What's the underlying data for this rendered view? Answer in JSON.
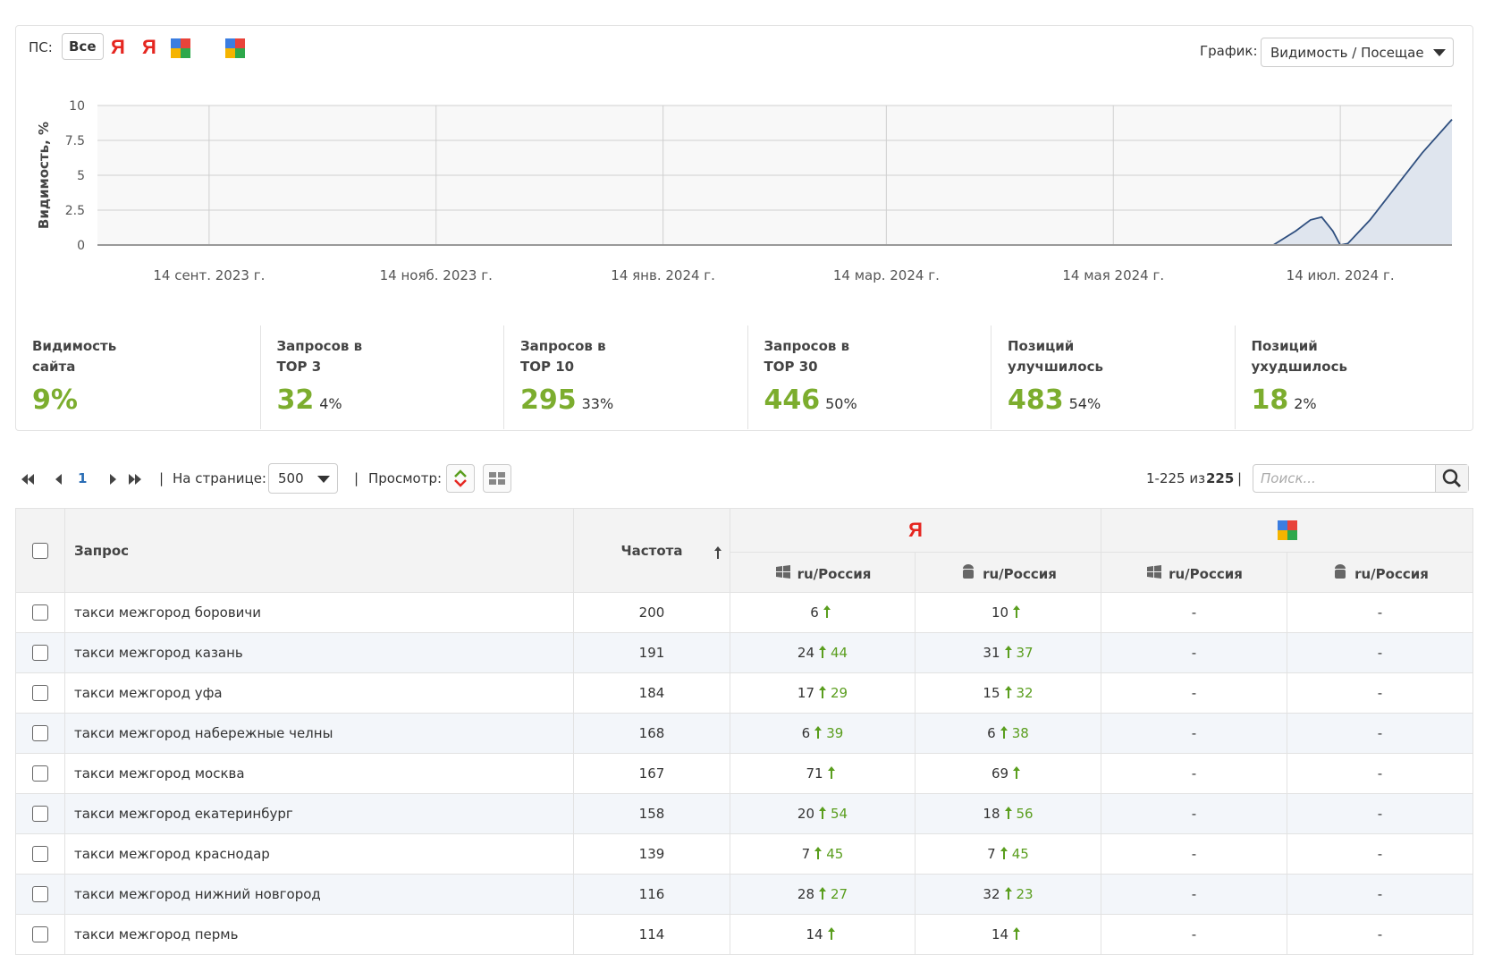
{
  "toolbar": {
    "engines_label": "ПС:",
    "all_button": "Все",
    "yandex_icons": [
      "Я",
      "Я"
    ],
    "graph_label": "График:",
    "graph_select": "Видимость / Посещаемость"
  },
  "chart_data": {
    "type": "area",
    "y_label": "Видимость, %",
    "color": "#2f4f7f",
    "fill": "#dfe5ee",
    "grid": true,
    "x": [
      "2023-08-15",
      "2024-06-26",
      "2024-07-02",
      "2024-07-06",
      "2024-07-09",
      "2024-07-12",
      "2024-07-14",
      "2024-07-16",
      "2024-07-22",
      "2024-07-29",
      "2024-08-05",
      "2024-08-13"
    ],
    "values": [
      0,
      0,
      1,
      1.8,
      2,
      1,
      0,
      0.1,
      1.8,
      4.2,
      6.6,
      9
    ],
    "xlim": [
      "2023-08-15",
      "2024-08-13"
    ],
    "xticks": [
      {
        "value": "2023-09-14",
        "label": "14 сент. 2023 г."
      },
      {
        "value": "2023-11-14",
        "label": "14 нояб. 2023 г."
      },
      {
        "value": "2024-01-14",
        "label": "14 янв. 2024 г."
      },
      {
        "value": "2024-03-14",
        "label": "14 мар. 2024 г."
      },
      {
        "value": "2024-05-14",
        "label": "14 мая 2024 г."
      },
      {
        "value": "2024-07-14",
        "label": "14 июл. 2024 г."
      }
    ],
    "ylim": [
      0,
      10
    ],
    "yticks": [
      0,
      2.5,
      5,
      7.5,
      10
    ]
  },
  "stats": [
    {
      "label": "Видимость сайта",
      "value": "9%"
    },
    {
      "label": "Запросов в TOP 3",
      "value": "32",
      "percent": "4%"
    },
    {
      "label": "Запросов в TOP 10",
      "value": "295",
      "percent": "33%"
    },
    {
      "label": "Запросов в TOP 30",
      "value": "446",
      "percent": "50%"
    },
    {
      "label": "Позиций улучшилось",
      "value": "483",
      "percent": "54%"
    },
    {
      "label": "Позиций ухудшилось",
      "value": "18",
      "percent": "2%"
    }
  ],
  "pagination": {
    "page": "1",
    "per_page_label": "На странице:",
    "per_page": "500",
    "view_label": "Просмотр:",
    "range": "1-225 из",
    "total": "225",
    "separator": "|",
    "search_placeholder": "Поиск..."
  },
  "table": {
    "header": {
      "query": "Запрос",
      "frequency": "Частота",
      "yandex": "Я",
      "regions": [
        "ru/Россия",
        "ru/Россия",
        "ru/Россия",
        "ru/Россия"
      ]
    },
    "rows": [
      {
        "query": "такси межгород боровичи",
        "frequency": "200",
        "yandex_desktop": {
          "position": "6",
          "change": null
        },
        "yandex_mobile": {
          "position": "10",
          "change": null
        },
        "google_desktop": "-",
        "google_mobile": "-"
      },
      {
        "query": "такси межгород казань",
        "frequency": "191",
        "yandex_desktop": {
          "position": "24",
          "change": "44"
        },
        "yandex_mobile": {
          "position": "31",
          "change": "37"
        },
        "google_desktop": "-",
        "google_mobile": "-"
      },
      {
        "query": "такси межгород уфа",
        "frequency": "184",
        "yandex_desktop": {
          "position": "17",
          "change": "29"
        },
        "yandex_mobile": {
          "position": "15",
          "change": "32"
        },
        "google_desktop": "-",
        "google_mobile": "-"
      },
      {
        "query": "такси межгород набережные челны",
        "frequency": "168",
        "yandex_desktop": {
          "position": "6",
          "change": "39"
        },
        "yandex_mobile": {
          "position": "6",
          "change": "38"
        },
        "google_desktop": "-",
        "google_mobile": "-"
      },
      {
        "query": "такси межгород москва",
        "frequency": "167",
        "yandex_desktop": {
          "position": "71",
          "change": null
        },
        "yandex_mobile": {
          "position": "69",
          "change": null
        },
        "google_desktop": "-",
        "google_mobile": "-"
      },
      {
        "query": "такси межгород екатеринбург",
        "frequency": "158",
        "yandex_desktop": {
          "position": "20",
          "change": "54"
        },
        "yandex_mobile": {
          "position": "18",
          "change": "56"
        },
        "google_desktop": "-",
        "google_mobile": "-"
      },
      {
        "query": "такси межгород краснодар",
        "frequency": "139",
        "yandex_desktop": {
          "position": "7",
          "change": "45"
        },
        "yandex_mobile": {
          "position": "7",
          "change": "45"
        },
        "google_desktop": "-",
        "google_mobile": "-"
      },
      {
        "query": "такси межгород нижний новгород",
        "frequency": "116",
        "yandex_desktop": {
          "position": "28",
          "change": "27"
        },
        "yandex_mobile": {
          "position": "32",
          "change": "23"
        },
        "google_desktop": "-",
        "google_mobile": "-"
      },
      {
        "query": "такси межгород пермь",
        "frequency": "114",
        "yandex_desktop": {
          "position": "14",
          "change": null
        },
        "yandex_mobile": {
          "position": "14",
          "change": null
        },
        "google_desktop": "-",
        "google_mobile": "-"
      }
    ]
  }
}
